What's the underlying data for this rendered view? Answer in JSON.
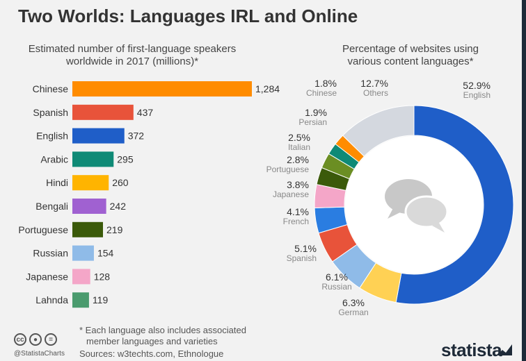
{
  "title": "Two Worlds: Languages IRL and Online",
  "bar_subtitle": [
    "Estimated number of first-language speakers",
    "worldwide in 2017 (millions)*"
  ],
  "donut_subtitle": [
    "Percentage of websites using",
    "various content languages*"
  ],
  "footnote": [
    "* Each language also includes associated",
    "member languages and varieties"
  ],
  "sources": "Sources: w3techts.com, Ethnologue",
  "handle": "@StatistaCharts",
  "cc_icons": [
    "cc-icon",
    "by-icon",
    "nd-icon"
  ],
  "logo": "statista",
  "chart_data": [
    {
      "type": "bar",
      "orientation": "horizontal",
      "title": "Estimated number of first-language speakers worldwide in 2017 (millions)*",
      "categories": [
        "Chinese",
        "Spanish",
        "English",
        "Arabic",
        "Hindi",
        "Bengali",
        "Portuguese",
        "Russian",
        "Japanese",
        "Lahnda"
      ],
      "values": [
        1284,
        437,
        372,
        295,
        260,
        242,
        219,
        154,
        128,
        119
      ],
      "value_labels": [
        "1,284",
        "437",
        "372",
        "295",
        "260",
        "242",
        "219",
        "154",
        "128",
        "119"
      ],
      "colors": [
        "#ff8c00",
        "#e8533a",
        "#1f5ec8",
        "#0f8a76",
        "#ffb400",
        "#a061d1",
        "#3b5a0a",
        "#8fbbe8",
        "#f4a6c8",
        "#4a9b6e"
      ],
      "xlim": [
        0,
        1284
      ]
    },
    {
      "type": "pie",
      "donut": true,
      "title": "Percentage of websites using various content languages*",
      "slices": [
        {
          "label": "English",
          "value": 52.9,
          "display": "52.9%",
          "color": "#1f5ec8"
        },
        {
          "label": "German",
          "value": 6.3,
          "display": "6.3%",
          "color": "#ffd154"
        },
        {
          "label": "Russian",
          "value": 6.1,
          "display": "6.1%",
          "color": "#8fbbe8"
        },
        {
          "label": "Spanish",
          "value": 5.1,
          "display": "5.1%",
          "color": "#e8533a"
        },
        {
          "label": "French",
          "value": 4.1,
          "display": "4.1%",
          "color": "#2a7de1"
        },
        {
          "label": "Japanese",
          "value": 3.8,
          "display": "3.8%",
          "color": "#f4a6c8"
        },
        {
          "label": "Portuguese",
          "value": 2.8,
          "display": "2.8%",
          "color": "#3b5a0a"
        },
        {
          "label": "Italian",
          "value": 2.5,
          "display": "2.5%",
          "color": "#6b8e23"
        },
        {
          "label": "Persian",
          "value": 1.9,
          "display": "1.9%",
          "color": "#0f8a76"
        },
        {
          "label": "Chinese",
          "value": 1.8,
          "display": "1.8%",
          "color": "#ff8c00"
        },
        {
          "label": "Others",
          "value": 12.7,
          "display": "12.7%",
          "color": "#d4d8df"
        }
      ],
      "center_icon": "speech-bubbles-icon"
    }
  ]
}
